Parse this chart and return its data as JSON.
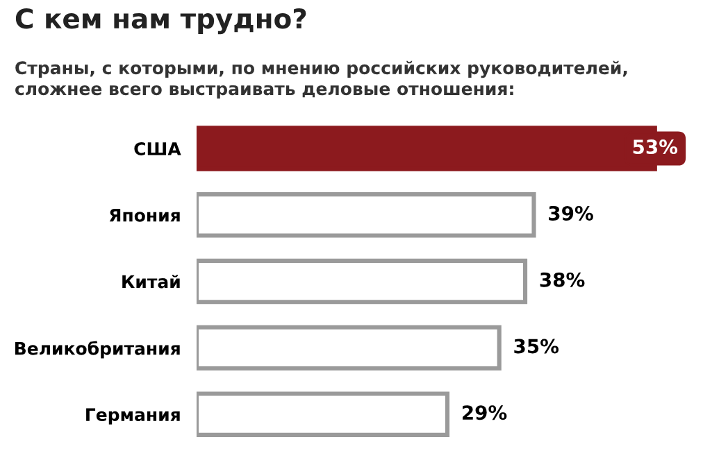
{
  "chart_data": {
    "type": "bar",
    "orientation": "horizontal",
    "title": "С кем нам трудно?",
    "subtitle": "Страны, с которыми, по мнению российских руководителей,\nсложнее всего выстраивать деловые отношения:",
    "categories": [
      "США",
      "Япония",
      "Китай",
      "Великобритания",
      "Германия"
    ],
    "values": [
      53,
      39,
      38,
      35,
      29
    ],
    "colors": [
      "#8c1a1e",
      "#ffffff",
      "#ffffff",
      "#ffffff",
      "#ffffff"
    ],
    "value_labels": [
      "53%",
      "39%",
      "38%",
      "35%",
      "29%"
    ],
    "legend": false
  }
}
